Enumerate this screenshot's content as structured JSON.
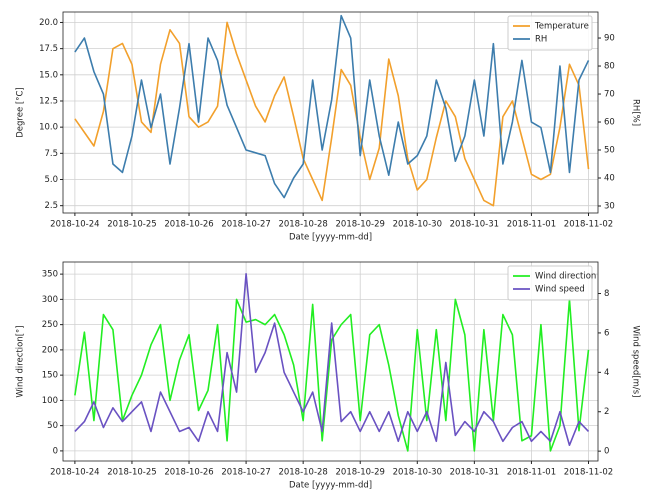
{
  "chart_data": [
    {
      "type": "line",
      "xlabel": "Date [yyyy-mm-dd]",
      "ylabel": "Degree [°C]",
      "y2label": "RH[%]",
      "x": [
        "2018-10-24T00:00",
        "2018-10-24T04:00",
        "2018-10-24T08:00",
        "2018-10-24T12:00",
        "2018-10-24T16:00",
        "2018-10-24T20:00",
        "2018-10-25T00:00",
        "2018-10-25T04:00",
        "2018-10-25T08:00",
        "2018-10-25T12:00",
        "2018-10-25T16:00",
        "2018-10-25T20:00",
        "2018-10-26T00:00",
        "2018-10-26T04:00",
        "2018-10-26T08:00",
        "2018-10-26T12:00",
        "2018-10-26T16:00",
        "2018-10-26T20:00",
        "2018-10-27T00:00",
        "2018-10-27T04:00",
        "2018-10-27T08:00",
        "2018-10-27T12:00",
        "2018-10-27T16:00",
        "2018-10-27T20:00",
        "2018-10-28T00:00",
        "2018-10-28T04:00",
        "2018-10-28T08:00",
        "2018-10-28T12:00",
        "2018-10-28T16:00",
        "2018-10-28T20:00",
        "2018-10-29T00:00",
        "2018-10-29T04:00",
        "2018-10-29T08:00",
        "2018-10-29T12:00",
        "2018-10-29T16:00",
        "2018-10-29T20:00",
        "2018-10-30T00:00",
        "2018-10-30T04:00",
        "2018-10-30T08:00",
        "2018-10-30T12:00",
        "2018-10-30T16:00",
        "2018-10-30T20:00",
        "2018-10-31T00:00",
        "2018-10-31T04:00",
        "2018-10-31T08:00",
        "2018-10-31T12:00",
        "2018-10-31T16:00",
        "2018-10-31T20:00",
        "2018-11-01T00:00",
        "2018-11-01T04:00",
        "2018-11-01T08:00",
        "2018-11-01T12:00",
        "2018-11-01T16:00",
        "2018-11-01T20:00",
        "2018-11-02T00:00"
      ],
      "series": [
        {
          "name": "Temperature",
          "color": "#f2a02c",
          "axis": "y",
          "values": [
            10.8,
            9.5,
            8.2,
            11.5,
            17.5,
            18,
            16,
            10.5,
            9.5,
            16,
            19.3,
            18,
            11,
            10,
            10.5,
            12,
            20,
            17,
            14.5,
            12,
            10.5,
            13,
            14.8,
            11,
            7,
            5,
            3,
            9,
            15.5,
            14,
            9,
            5,
            8,
            16.5,
            13,
            7,
            4,
            5,
            9,
            12.5,
            11,
            7,
            5,
            3,
            2.5,
            11,
            12.5,
            9,
            5.5,
            5,
            5.5,
            10,
            16,
            14,
            6
          ]
        },
        {
          "name": "RH",
          "color": "#3d7dad",
          "axis": "y2",
          "values": [
            85,
            90,
            78,
            70,
            45,
            42,
            55,
            75,
            58,
            70,
            45,
            65,
            88,
            60,
            90,
            82,
            66,
            58,
            50,
            49,
            48,
            38,
            33,
            40,
            45,
            75,
            50,
            68,
            98,
            90,
            48,
            75,
            55,
            41,
            60,
            45,
            48,
            55,
            75,
            65,
            46,
            55,
            75,
            55,
            88,
            45,
            60,
            82,
            60,
            58,
            42,
            80,
            42,
            75,
            82
          ]
        }
      ],
      "xlim": [
        "2018-10-23T19:00",
        "2018-11-02T04:00"
      ],
      "xticks": [
        "2018-10-24",
        "2018-10-25",
        "2018-10-26",
        "2018-10-27",
        "2018-10-28",
        "2018-10-29",
        "2018-10-30",
        "2018-10-31",
        "2018-11-01",
        "2018-11-02"
      ],
      "ylim": [
        1.8,
        21
      ],
      "yticks": [
        2.5,
        {
          "value": 5,
          "label": "5.0"
        },
        7.5,
        {
          "value": 10,
          "label": "10.0"
        },
        12.5,
        {
          "value": 15,
          "label": "15.0"
        },
        17.5,
        {
          "value": 20,
          "label": "20.0"
        }
      ],
      "y2lim": [
        27.5,
        99.3
      ],
      "y2ticks": [
        30,
        40,
        50,
        60,
        70,
        80,
        90
      ],
      "grid": true,
      "legend": "upper right"
    },
    {
      "type": "line",
      "xlabel": "Date [yyyy-mm-dd]",
      "ylabel": "Wind direction[°]",
      "y2label": "Wind speed[m/s]",
      "x": [
        "2018-10-24T00:00",
        "2018-10-24T04:00",
        "2018-10-24T08:00",
        "2018-10-24T12:00",
        "2018-10-24T16:00",
        "2018-10-24T20:00",
        "2018-10-25T00:00",
        "2018-10-25T04:00",
        "2018-10-25T08:00",
        "2018-10-25T12:00",
        "2018-10-25T16:00",
        "2018-10-25T20:00",
        "2018-10-26T00:00",
        "2018-10-26T04:00",
        "2018-10-26T08:00",
        "2018-10-26T12:00",
        "2018-10-26T16:00",
        "2018-10-26T20:00",
        "2018-10-27T00:00",
        "2018-10-27T04:00",
        "2018-10-27T08:00",
        "2018-10-27T12:00",
        "2018-10-27T16:00",
        "2018-10-27T20:00",
        "2018-10-28T00:00",
        "2018-10-28T04:00",
        "2018-10-28T08:00",
        "2018-10-28T12:00",
        "2018-10-28T16:00",
        "2018-10-28T20:00",
        "2018-10-29T00:00",
        "2018-10-29T04:00",
        "2018-10-29T08:00",
        "2018-10-29T12:00",
        "2018-10-29T16:00",
        "2018-10-29T20:00",
        "2018-10-30T00:00",
        "2018-10-30T04:00",
        "2018-10-30T08:00",
        "2018-10-30T12:00",
        "2018-10-30T16:00",
        "2018-10-30T20:00",
        "2018-10-31T00:00",
        "2018-10-31T04:00",
        "2018-10-31T08:00",
        "2018-10-31T12:00",
        "2018-10-31T16:00",
        "2018-10-31T20:00",
        "2018-11-01T00:00",
        "2018-11-01T04:00",
        "2018-11-01T08:00",
        "2018-11-01T12:00",
        "2018-11-01T16:00",
        "2018-11-01T20:00",
        "2018-11-02T00:00"
      ],
      "series": [
        {
          "name": "Wind direction",
          "color": "#22ee22",
          "axis": "y",
          "values": [
            110,
            235,
            60,
            270,
            240,
            60,
            110,
            150,
            210,
            250,
            100,
            180,
            230,
            80,
            120,
            250,
            20,
            300,
            255,
            260,
            250,
            270,
            230,
            170,
            60,
            290,
            20,
            220,
            250,
            270,
            60,
            230,
            250,
            170,
            70,
            0,
            240,
            60,
            240,
            60,
            300,
            230,
            0,
            240,
            60,
            270,
            230,
            20,
            30,
            250,
            0,
            50,
            300,
            40,
            200
          ]
        },
        {
          "name": "Wind speed",
          "color": "#6a52c2",
          "axis": "y2",
          "values": [
            1,
            1.5,
            2.5,
            1.2,
            2.2,
            1.5,
            2,
            2.5,
            1,
            3,
            2,
            1,
            1.2,
            0.5,
            2,
            1,
            5,
            3,
            9,
            4,
            5,
            6.5,
            4,
            3,
            2,
            3,
            1,
            6.5,
            1.5,
            2,
            1,
            2,
            1,
            2,
            0.5,
            2,
            1,
            2,
            0.5,
            4.5,
            0.8,
            1.5,
            1,
            2,
            1.5,
            0.5,
            1.2,
            1.5,
            0.5,
            1,
            0.5,
            2,
            0.3,
            1.5,
            1
          ]
        }
      ],
      "xlim": [
        "2018-10-23T19:00",
        "2018-11-02T04:00"
      ],
      "xticks": [
        "2018-10-24",
        "2018-10-25",
        "2018-10-26",
        "2018-10-27",
        "2018-10-28",
        "2018-10-29",
        "2018-10-30",
        "2018-10-31",
        "2018-11-01",
        "2018-11-02"
      ],
      "ylim": [
        -20,
        374
      ],
      "yticks": [
        0,
        50,
        100,
        150,
        200,
        250,
        300,
        350
      ],
      "y2lim": [
        -0.5,
        9.6
      ],
      "y2ticks": [
        0,
        2,
        4,
        6,
        8
      ],
      "grid": true,
      "legend": "upper right"
    }
  ]
}
